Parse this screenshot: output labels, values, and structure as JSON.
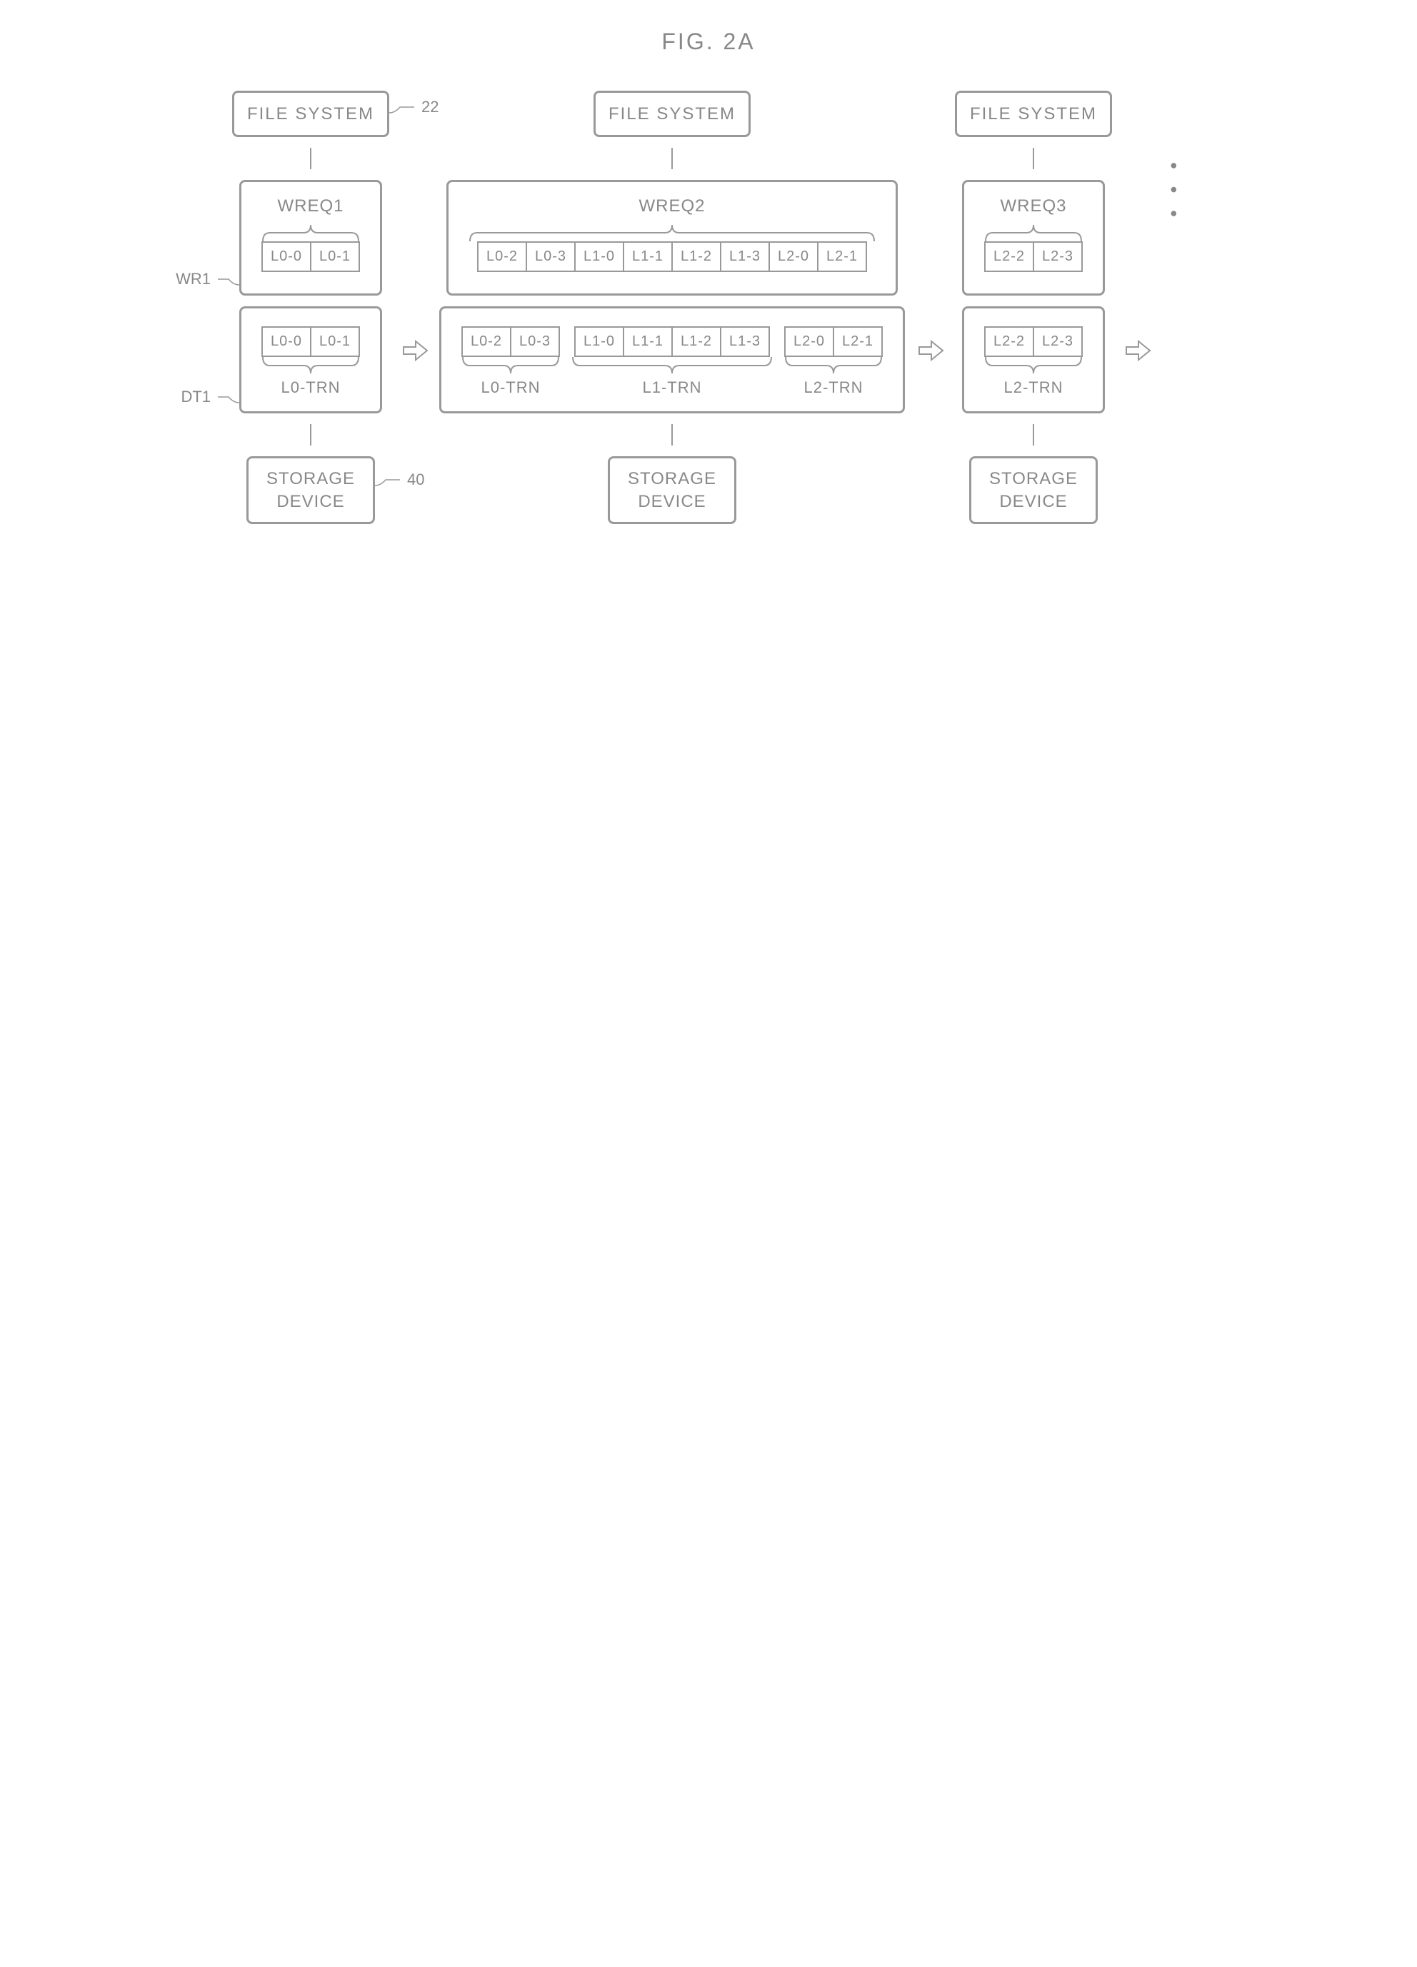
{
  "figure_title": "FIG. 2A",
  "labels": {
    "file_system": "FILE SYSTEM",
    "storage_device": "STORAGE DEVICE",
    "ref_22": "22",
    "ref_40": "40",
    "ref_WR1": "WR1",
    "ref_DT1": "DT1",
    "dots": "• • •"
  },
  "columns": [
    {
      "wreq": {
        "label": "WREQ1",
        "cells": [
          "L0-0",
          "L0-1"
        ]
      },
      "dt": {
        "groups": [
          {
            "cells": [
              "L0-0",
              "L0-1"
            ],
            "trn_label": "L0-TRN"
          }
        ]
      },
      "has_refs": true
    },
    {
      "wreq": {
        "label": "WREQ2",
        "cells": [
          "L0-2",
          "L0-3",
          "L1-0",
          "L1-1",
          "L1-2",
          "L1-3",
          "L2-0",
          "L2-1"
        ]
      },
      "dt": {
        "groups": [
          {
            "cells": [
              "L0-2",
              "L0-3"
            ],
            "trn_label": "L0-TRN"
          },
          {
            "cells": [
              "L1-0",
              "L1-1",
              "L1-2",
              "L1-3"
            ],
            "trn_label": "L1-TRN"
          },
          {
            "cells": [
              "L2-0",
              "L2-1"
            ],
            "trn_label": "L2-TRN"
          }
        ]
      },
      "has_refs": false
    },
    {
      "wreq": {
        "label": "WREQ3",
        "cells": [
          "L2-2",
          "L2-3"
        ]
      },
      "dt": {
        "groups": [
          {
            "cells": [
              "L2-2",
              "L2-3"
            ],
            "trn_label": "L2-TRN"
          }
        ]
      },
      "has_refs": false
    }
  ],
  "style": {
    "border_color": "#999999",
    "text_color": "#888888",
    "background": "#ffffff"
  }
}
